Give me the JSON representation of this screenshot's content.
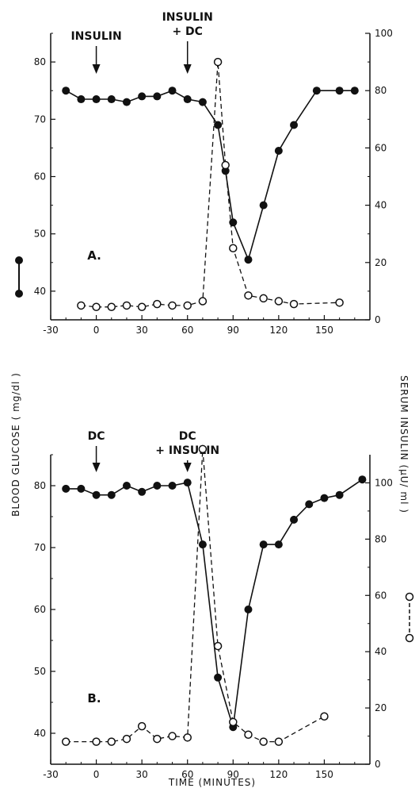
{
  "chart_data": [
    {
      "type": "line",
      "panel_label": "A.",
      "xlim": [
        -30,
        180
      ],
      "ylim_left": [
        35,
        85
      ],
      "ylim_right": [
        0,
        100
      ],
      "x_ticks": [
        "-30",
        "0",
        "30",
        "60",
        "90",
        "120",
        "150"
      ],
      "y_left_ticks": [
        "40",
        "50",
        "60",
        "70",
        "80"
      ],
      "y_right_ticks": [
        "0",
        "20",
        "40",
        "60",
        "80",
        "100"
      ],
      "annotations": [
        {
          "lines": [
            "INSULIN"
          ],
          "x": 0
        },
        {
          "lines": [
            "INSULIN",
            "+ DC"
          ],
          "x": 60
        }
      ],
      "series": [
        {
          "axis": "left",
          "marker": "filled",
          "style": "solid",
          "x": [
            -20,
            -10,
            0,
            10,
            20,
            30,
            40,
            50,
            60,
            70,
            80,
            85,
            90,
            100,
            110,
            120,
            130,
            145,
            160,
            170
          ],
          "y": [
            75,
            73.5,
            73.5,
            73.5,
            73,
            74,
            74,
            75,
            73.5,
            73,
            69,
            61,
            52,
            45.5,
            55,
            64.5,
            69,
            75,
            75,
            75
          ]
        },
        {
          "axis": "right",
          "marker": "open",
          "style": "dashed",
          "x": [
            -10,
            0,
            10,
            20,
            30,
            40,
            50,
            60,
            70,
            80,
            85,
            90,
            100,
            110,
            120,
            130,
            160
          ],
          "y": [
            5,
            4.5,
            4.5,
            5,
            4.5,
            5.5,
            5,
            5,
            6.5,
            90,
            54,
            25,
            8.5,
            7.5,
            6.5,
            5.5,
            6
          ]
        }
      ]
    },
    {
      "type": "line",
      "panel_label": "B.",
      "xlim": [
        -30,
        180
      ],
      "ylim_left": [
        35,
        85
      ],
      "ylim_right": [
        0,
        110
      ],
      "x_ticks": [
        "-30",
        "0",
        "30",
        "60",
        "90",
        "120",
        "150"
      ],
      "y_left_ticks": [
        "40",
        "50",
        "60",
        "70",
        "80"
      ],
      "y_right_ticks": [
        "0",
        "20",
        "40",
        "60",
        "80",
        "100"
      ],
      "annotations": [
        {
          "lines": [
            "DC"
          ],
          "x": 0
        },
        {
          "lines": [
            "DC",
            "+ INSULIN"
          ],
          "x": 60
        }
      ],
      "series": [
        {
          "axis": "left",
          "marker": "filled",
          "style": "solid",
          "x": [
            -20,
            -10,
            0,
            10,
            20,
            30,
            40,
            50,
            60,
            70,
            80,
            90,
            100,
            110,
            120,
            130,
            140,
            150,
            160,
            175
          ],
          "y": [
            79.5,
            79.5,
            78.5,
            78.5,
            80,
            79,
            80,
            80,
            80.5,
            70.5,
            49,
            41,
            60,
            70.5,
            70.5,
            74.5,
            77,
            78,
            78.5,
            81
          ]
        },
        {
          "axis": "right",
          "marker": "open",
          "style": "dashed",
          "x": [
            -20,
            0,
            10,
            20,
            30,
            40,
            50,
            60,
            70,
            80,
            90,
            100,
            110,
            120,
            150
          ],
          "y": [
            8,
            8,
            8,
            9,
            13.5,
            9,
            10,
            9.5,
            112,
            42,
            15,
            10.5,
            8,
            8,
            17
          ]
        }
      ]
    }
  ],
  "shared": {
    "xlabel": "TIME  (MINUTES)",
    "ylabel_left": "BLOOD GLUCOSE  ( mg/dl )",
    "ylabel_right": "SERUM  INSULIN  (µU/ ml )"
  }
}
